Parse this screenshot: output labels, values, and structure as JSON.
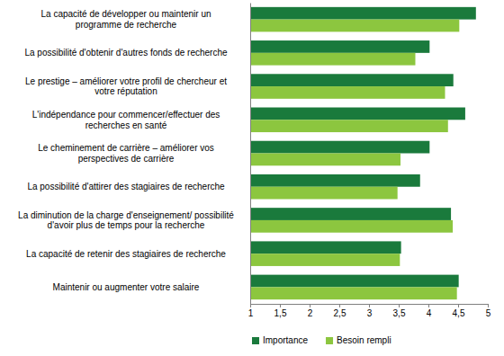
{
  "chart_data": {
    "type": "bar",
    "orientation": "horizontal",
    "categories": [
      "La capacité de développer ou maintenir un programme de recherche",
      "La possibilité d'obtenir d'autres fonds de recherche",
      "Le prestige – améliorer votre profil de chercheur et votre réputation",
      "L'indépendance pour commencer/effectuer des recherches en santé",
      "Le cheminement de carrière – améliorer vos perspectives de carrière",
      "La possibilité d'attirer des stagiaires de recherche",
      "La diminution de la charge d'enseignement/ possibilité d'avoir plus de temps pour la recherche",
      "La capacité de retenir des stagiaires de recherche",
      "Maintenir ou augmenter votre salaire"
    ],
    "series": [
      {
        "name": "Importance",
        "color": "#1a7a3c",
        "values": [
          4.8,
          4.02,
          4.42,
          4.62,
          4.02,
          3.86,
          4.38,
          3.54,
          4.51
        ]
      },
      {
        "name": "Besoin rempli",
        "color": "#8cc63f",
        "values": [
          4.52,
          3.78,
          4.28,
          4.33,
          3.53,
          3.48,
          4.41,
          3.52,
          4.48
        ]
      }
    ],
    "xlim": [
      1,
      5
    ],
    "xticks": [
      1,
      {
        "value": 1.5,
        "label": "1,5"
      },
      2,
      {
        "value": 2.5,
        "label": "2,5"
      },
      3,
      {
        "value": 3.5,
        "label": "3,5"
      },
      4,
      {
        "value": 4.5,
        "label": "4,5"
      },
      5
    ],
    "grid": false,
    "legend": "bottom"
  }
}
